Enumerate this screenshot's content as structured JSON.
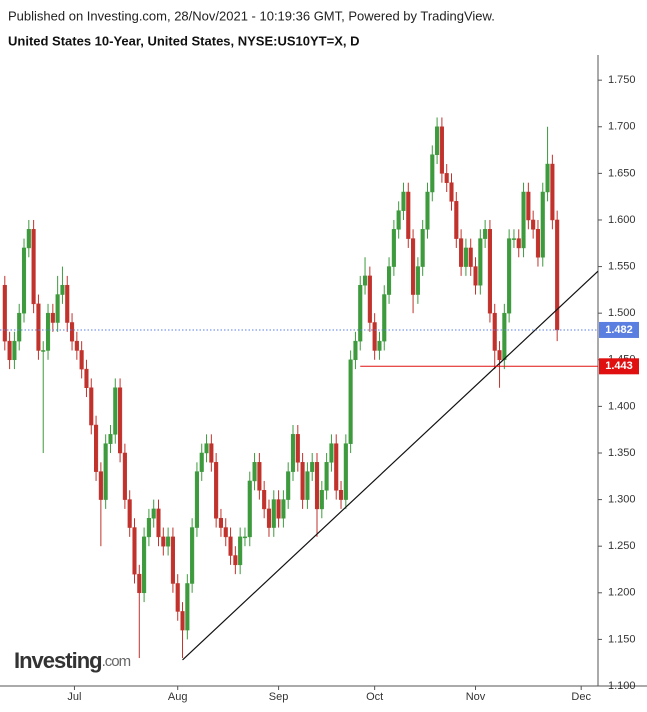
{
  "header": {
    "published": "Published on Investing.com, 28/Nov/2021 - 10:19:36 GMT, Powered by TradingView.",
    "logo": "Investing",
    "logo_suffix": ".com"
  },
  "chart_data": {
    "type": "candlestick",
    "title": "United States 10-Year, United States, NYSE:US10YT=X, D",
    "up_color": "#3d9a3d",
    "down_color": "#c1322c",
    "open": [
      1.53,
      1.47,
      1.45,
      1.47,
      1.5,
      1.57,
      1.59,
      1.51,
      1.46,
      1.46,
      1.5,
      1.49,
      1.52,
      1.53,
      1.49,
      1.47,
      1.46,
      1.44,
      1.42,
      1.38,
      1.33,
      1.3,
      1.36,
      1.37,
      1.42,
      1.35,
      1.3,
      1.27,
      1.22,
      1.2,
      1.26,
      1.28,
      1.29,
      1.26,
      1.25,
      1.26,
      1.21,
      1.18,
      1.16,
      1.21,
      1.27,
      1.33,
      1.35,
      1.36,
      1.34,
      1.28,
      1.27,
      1.26,
      1.24,
      1.23,
      1.26,
      1.26,
      1.32,
      1.34,
      1.31,
      1.29,
      1.27,
      1.3,
      1.28,
      1.3,
      1.33,
      1.37,
      1.34,
      1.3,
      1.33,
      1.34,
      1.29,
      1.31,
      1.34,
      1.36,
      1.31,
      1.3,
      1.36,
      1.45,
      1.47,
      1.53,
      1.54,
      1.49,
      1.46,
      1.47,
      1.52,
      1.55,
      1.59,
      1.61,
      1.63,
      1.58,
      1.52,
      1.55,
      1.59,
      1.63,
      1.67,
      1.7,
      1.65,
      1.64,
      1.62,
      1.58,
      1.55,
      1.57,
      1.55,
      1.53,
      1.58,
      1.59,
      1.5,
      1.46,
      1.45,
      1.5,
      1.58,
      1.58,
      1.57,
      1.63,
      1.6,
      1.59,
      1.56,
      1.63,
      1.66,
      1.6
    ],
    "high": [
      1.54,
      1.48,
      1.48,
      1.51,
      1.58,
      1.6,
      1.6,
      1.52,
      1.47,
      1.51,
      1.51,
      1.54,
      1.55,
      1.54,
      1.5,
      1.48,
      1.47,
      1.45,
      1.43,
      1.39,
      1.34,
      1.37,
      1.38,
      1.43,
      1.43,
      1.36,
      1.31,
      1.28,
      1.23,
      1.27,
      1.29,
      1.3,
      1.3,
      1.27,
      1.27,
      1.27,
      1.22,
      1.19,
      1.22,
      1.28,
      1.34,
      1.36,
      1.37,
      1.37,
      1.35,
      1.29,
      1.28,
      1.27,
      1.25,
      1.27,
      1.27,
      1.33,
      1.35,
      1.35,
      1.32,
      1.3,
      1.31,
      1.31,
      1.31,
      1.34,
      1.38,
      1.38,
      1.35,
      1.34,
      1.35,
      1.35,
      1.32,
      1.35,
      1.37,
      1.37,
      1.32,
      1.37,
      1.46,
      1.48,
      1.54,
      1.56,
      1.55,
      1.5,
      1.48,
      1.53,
      1.56,
      1.6,
      1.62,
      1.64,
      1.64,
      1.59,
      1.56,
      1.6,
      1.64,
      1.68,
      1.71,
      1.71,
      1.66,
      1.65,
      1.63,
      1.59,
      1.58,
      1.58,
      1.56,
      1.59,
      1.6,
      1.6,
      1.51,
      1.47,
      1.51,
      1.59,
      1.59,
      1.59,
      1.64,
      1.64,
      1.61,
      1.6,
      1.64,
      1.7,
      1.67,
      1.61
    ],
    "low": [
      1.46,
      1.44,
      1.44,
      1.46,
      1.49,
      1.56,
      1.5,
      1.45,
      1.35,
      1.45,
      1.48,
      1.48,
      1.51,
      1.48,
      1.46,
      1.45,
      1.43,
      1.41,
      1.37,
      1.32,
      1.25,
      1.29,
      1.35,
      1.36,
      1.34,
      1.29,
      1.26,
      1.21,
      1.13,
      1.19,
      1.25,
      1.27,
      1.25,
      1.24,
      1.24,
      1.2,
      1.17,
      1.13,
      1.15,
      1.2,
      1.26,
      1.32,
      1.34,
      1.33,
      1.27,
      1.26,
      1.25,
      1.23,
      1.22,
      1.22,
      1.25,
      1.25,
      1.31,
      1.3,
      1.28,
      1.26,
      1.26,
      1.27,
      1.27,
      1.29,
      1.32,
      1.33,
      1.29,
      1.29,
      1.32,
      1.26,
      1.28,
      1.3,
      1.33,
      1.3,
      1.29,
      1.29,
      1.35,
      1.44,
      1.46,
      1.52,
      1.48,
      1.45,
      1.45,
      1.46,
      1.51,
      1.54,
      1.58,
      1.6,
      1.57,
      1.5,
      1.51,
      1.54,
      1.58,
      1.62,
      1.66,
      1.64,
      1.63,
      1.61,
      1.57,
      1.54,
      1.54,
      1.54,
      1.52,
      1.52,
      1.57,
      1.49,
      1.44,
      1.42,
      1.44,
      1.49,
      1.57,
      1.56,
      1.56,
      1.59,
      1.58,
      1.55,
      1.55,
      1.62,
      1.59,
      1.47
    ],
    "close": [
      1.47,
      1.45,
      1.47,
      1.5,
      1.57,
      1.59,
      1.51,
      1.46,
      1.46,
      1.5,
      1.49,
      1.52,
      1.53,
      1.49,
      1.47,
      1.46,
      1.44,
      1.42,
      1.38,
      1.33,
      1.3,
      1.36,
      1.37,
      1.42,
      1.35,
      1.3,
      1.27,
      1.22,
      1.2,
      1.26,
      1.28,
      1.29,
      1.26,
      1.25,
      1.26,
      1.21,
      1.18,
      1.16,
      1.21,
      1.27,
      1.33,
      1.35,
      1.36,
      1.34,
      1.28,
      1.27,
      1.26,
      1.24,
      1.23,
      1.26,
      1.26,
      1.32,
      1.34,
      1.31,
      1.29,
      1.27,
      1.3,
      1.28,
      1.3,
      1.33,
      1.37,
      1.34,
      1.3,
      1.33,
      1.34,
      1.29,
      1.31,
      1.34,
      1.36,
      1.31,
      1.3,
      1.36,
      1.45,
      1.47,
      1.53,
      1.54,
      1.49,
      1.46,
      1.47,
      1.52,
      1.55,
      1.59,
      1.61,
      1.63,
      1.58,
      1.52,
      1.55,
      1.59,
      1.63,
      1.67,
      1.7,
      1.65,
      1.64,
      1.62,
      1.58,
      1.55,
      1.57,
      1.55,
      1.53,
      1.58,
      1.59,
      1.5,
      1.46,
      1.45,
      1.5,
      1.58,
      1.58,
      1.57,
      1.63,
      1.6,
      1.59,
      1.56,
      1.63,
      1.66,
      1.6,
      1.482
    ],
    "xlim": [
      -1,
      123.5
    ],
    "xticks": [
      {
        "value": 14.5,
        "label": "Jul"
      },
      {
        "value": 36,
        "label": "Aug"
      },
      {
        "value": 57,
        "label": "Sep"
      },
      {
        "value": 77,
        "label": "Oct"
      },
      {
        "value": 98,
        "label": "Nov"
      },
      {
        "value": 120,
        "label": "Dec"
      }
    ],
    "ylim": [
      1.1,
      1.777
    ],
    "yticks": [
      {
        "value": 1.1,
        "label": "1.100"
      },
      {
        "value": 1.15,
        "label": "1.150"
      },
      {
        "value": 1.2,
        "label": "1.200"
      },
      {
        "value": 1.25,
        "label": "1.250"
      },
      {
        "value": 1.3,
        "label": "1.300"
      },
      {
        "value": 1.35,
        "label": "1.350"
      },
      {
        "value": 1.4,
        "label": "1.400"
      },
      {
        "value": 1.45,
        "label": "1.450"
      },
      {
        "value": 1.5,
        "label": "1.500"
      },
      {
        "value": 1.55,
        "label": "1.550"
      },
      {
        "value": 1.6,
        "label": "1.600"
      },
      {
        "value": 1.65,
        "label": "1.650"
      },
      {
        "value": 1.7,
        "label": "1.700"
      },
      {
        "value": 1.75,
        "label": "1.750"
      }
    ],
    "last_price": 1.482,
    "last_price_color": "#5b7fe0",
    "support_level": 1.443,
    "support_color": "#e01010",
    "support_start": 74,
    "trendline": {
      "x": [
        37,
        123.5
      ],
      "y": [
        1.128,
        1.545
      ]
    }
  }
}
